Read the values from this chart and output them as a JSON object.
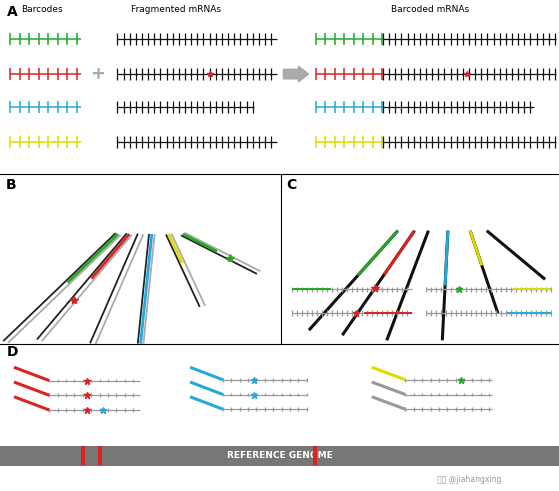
{
  "colors": {
    "green": "#22aa22",
    "red": "#dd2222",
    "cyan": "#22aadd",
    "yellow": "#dddd00",
    "black": "#111111",
    "gray": "#888888",
    "light_gray": "#cccccc",
    "dark_gray": "#444444",
    "mid_gray": "#999999",
    "white": "#ffffff",
    "bead_dark": "#333333",
    "bead_mid": "#888888",
    "bead_light": "#cccccc"
  },
  "panel_A": {
    "title_barcodes": "Barcodes",
    "title_fragments": "Fragmented mRNAs",
    "title_barcoded": "Barcoded mRNAs",
    "barcode_colors": [
      "#22aa22",
      "#dd2222",
      "#22aadd",
      "#dddd00"
    ]
  },
  "label_A": "A",
  "label_B": "B",
  "label_C": "C",
  "label_D": "D",
  "reference_genome_text": "REFERENCE GENOME",
  "watermark": "知乎 @jiahangxing"
}
